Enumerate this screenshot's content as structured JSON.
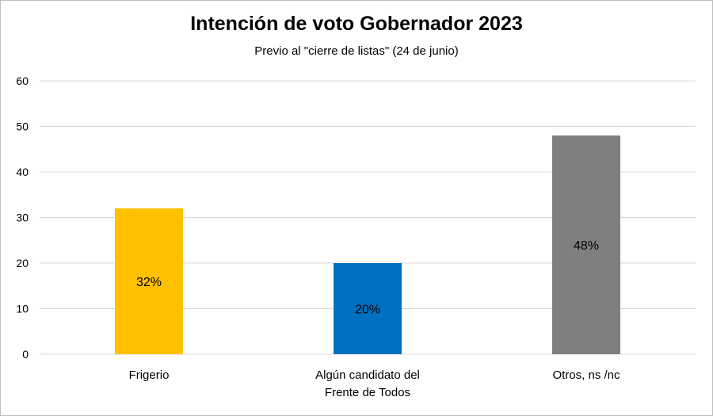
{
  "chart_data": {
    "type": "bar",
    "title": "Intención de voto Gobernador 2023",
    "subtitle": "Previo al \"cierre de listas\" (24 de junio)",
    "categories": [
      [
        "Frigerio"
      ],
      [
        "Algún candidato del",
        "Frente de Todos"
      ],
      [
        "Otros, ns /nc"
      ]
    ],
    "values": [
      32,
      20,
      48
    ],
    "data_labels": [
      "32%",
      "20%",
      "48%"
    ],
    "colors": [
      "#FFC000",
      "#0070C0",
      "#7F7F7F"
    ],
    "ylim": [
      0,
      60
    ],
    "yticks": [
      0,
      10,
      20,
      30,
      40,
      50,
      60
    ],
    "grid": true,
    "legend": "none"
  }
}
